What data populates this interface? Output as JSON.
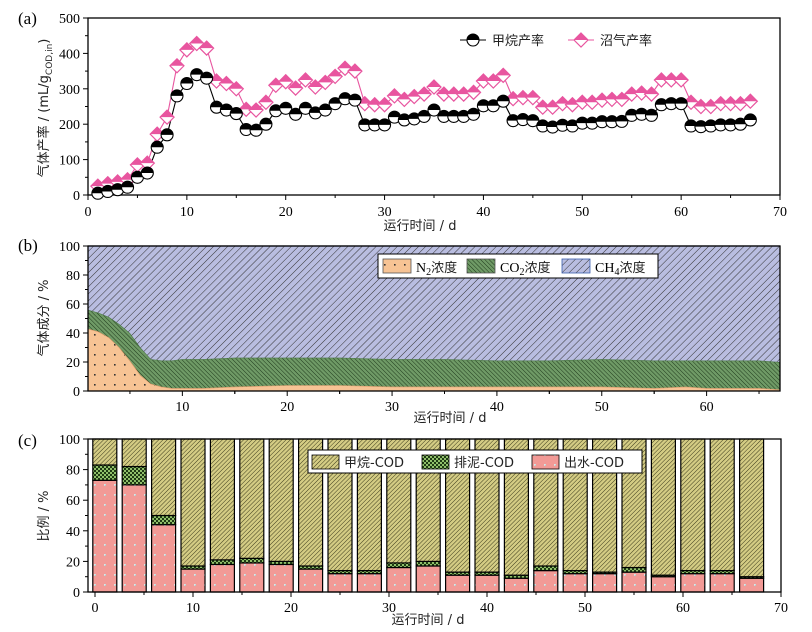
{
  "chart_data": [
    {
      "panel": "a",
      "panel_label": "(a)",
      "type": "line",
      "xlabel": "运行时间 / d",
      "ylabel": "气体产率 / (mL/g",
      "ylabel_sub": "COD,in",
      "ylabel_end": ")",
      "xlim": [
        0,
        70
      ],
      "ylim": [
        0,
        500
      ],
      "xticks": [
        0,
        10,
        20,
        30,
        40,
        50,
        60,
        70
      ],
      "yticks": [
        0,
        100,
        200,
        300,
        400,
        500
      ],
      "legend_position": "top-right",
      "x": [
        1,
        2,
        3,
        4,
        5,
        6,
        7,
        8,
        9,
        10,
        11,
        12,
        13,
        14,
        15,
        16,
        17,
        18,
        19,
        20,
        21,
        22,
        23,
        24,
        25,
        26,
        27,
        28,
        29,
        30,
        31,
        32,
        33,
        34,
        35,
        36,
        37,
        38,
        39,
        40,
        41,
        42,
        43,
        44,
        45,
        46,
        47,
        48,
        49,
        50,
        51,
        52,
        53,
        54,
        55,
        56,
        57,
        58,
        59,
        60,
        61,
        62,
        63,
        64,
        65,
        66,
        67
      ],
      "series": [
        {
          "name": "甲烷产率",
          "color": "#000000",
          "marker": "half-filled-circle",
          "values": [
            5,
            10,
            15,
            22,
            50,
            62,
            135,
            170,
            280,
            315,
            340,
            330,
            248,
            240,
            230,
            185,
            183,
            200,
            238,
            245,
            228,
            245,
            232,
            240,
            258,
            272,
            268,
            198,
            198,
            198,
            220,
            212,
            215,
            222,
            240,
            222,
            222,
            222,
            228,
            252,
            252,
            265,
            210,
            213,
            210,
            195,
            192,
            197,
            195,
            203,
            203,
            207,
            207,
            208,
            225,
            228,
            225,
            255,
            258,
            258,
            195,
            193,
            195,
            198,
            198,
            200,
            212
          ]
        },
        {
          "name": "沼气产率",
          "color": "#e8559f",
          "marker": "half-filled-diamond",
          "values": [
            25,
            32,
            37,
            43,
            85,
            90,
            172,
            220,
            365,
            410,
            428,
            415,
            322,
            315,
            300,
            242,
            240,
            262,
            310,
            320,
            302,
            325,
            305,
            318,
            335,
            358,
            350,
            258,
            255,
            255,
            280,
            270,
            278,
            285,
            305,
            285,
            285,
            285,
            290,
            322,
            322,
            338,
            272,
            275,
            275,
            248,
            248,
            258,
            255,
            262,
            262,
            268,
            270,
            270,
            285,
            288,
            285,
            325,
            325,
            325,
            262,
            250,
            250,
            258,
            258,
            258,
            265
          ]
        }
      ]
    },
    {
      "panel": "b",
      "panel_label": "(b)",
      "type": "area",
      "stacked": true,
      "xlabel": "运行时间 / d",
      "ylabel": "气体成分 / %",
      "xlim": [
        1,
        67
      ],
      "ylim": [
        0,
        100
      ],
      "xticks": [
        10,
        20,
        30,
        40,
        50,
        60
      ],
      "yticks": [
        0,
        20,
        40,
        60,
        80,
        100
      ],
      "legend_position": "top-right",
      "x": [
        1,
        2,
        3,
        4,
        5,
        6,
        7,
        8,
        9,
        10,
        12,
        15,
        20,
        25,
        30,
        35,
        40,
        45,
        50,
        55,
        58,
        60,
        65,
        67
      ],
      "series": [
        {
          "name": "N2浓度",
          "label_main": "N",
          "label_sub": "2",
          "label_tail": "浓度",
          "color": "#f7c394",
          "pattern": "dots",
          "values": [
            43,
            41,
            37,
            30,
            21,
            11,
            5,
            3,
            2,
            2,
            2,
            3,
            4,
            4,
            3,
            3,
            3,
            3,
            3,
            2,
            3,
            2,
            2,
            1
          ]
        },
        {
          "name": "CO2浓度",
          "label_main": "CO",
          "label_sub": "2",
          "label_tail": "浓度",
          "color": "#5f8f5b",
          "pattern": "dense-diagonal",
          "values": [
            13,
            13,
            14,
            16,
            19,
            19,
            17,
            18,
            19,
            20,
            20,
            20,
            19,
            19,
            19,
            19,
            18,
            18,
            19,
            19,
            18,
            19,
            19,
            19
          ]
        },
        {
          "name": "CH4浓度",
          "label_main": "CH",
          "label_sub": "4",
          "label_tail": "浓度",
          "color": "#b9bde0",
          "pattern": "diagonal",
          "values": [
            44,
            46,
            49,
            54,
            60,
            70,
            78,
            79,
            79,
            78,
            78,
            77,
            77,
            77,
            78,
            78,
            79,
            79,
            78,
            79,
            79,
            79,
            79,
            80
          ]
        }
      ]
    },
    {
      "panel": "c",
      "panel_label": "(c)",
      "type": "bar",
      "stacked": true,
      "xlabel": "运行时间 / d",
      "ylabel": "比例 / %",
      "xlim": [
        0,
        70
      ],
      "ylim": [
        0,
        100
      ],
      "xticks": [
        0,
        10,
        20,
        30,
        40,
        50,
        60,
        70
      ],
      "yticks": [
        0,
        20,
        40,
        60,
        80,
        100
      ],
      "legend_position": "top-right",
      "x": [
        1,
        4,
        7,
        10,
        13,
        16,
        19,
        22,
        25,
        28,
        31,
        34,
        37,
        40,
        43,
        46,
        49,
        52,
        55,
        58,
        61,
        64,
        67
      ],
      "series": [
        {
          "name": "出水-COD",
          "color": "#f29a96",
          "pattern": "dots",
          "values": [
            73,
            70,
            44,
            15,
            18,
            19,
            18,
            15,
            12,
            12,
            16,
            17,
            11,
            11,
            9,
            14,
            12,
            12,
            13,
            10,
            12,
            12,
            9
          ]
        },
        {
          "name": "排泥-COD",
          "color": "#4f7a3a",
          "pattern": "checker",
          "values": [
            10,
            12,
            6,
            2,
            3,
            3,
            2,
            2,
            2,
            2,
            3,
            3,
            2,
            2,
            2,
            3,
            2,
            1,
            3,
            1,
            2,
            2,
            1
          ]
        },
        {
          "name": "甲烷-COD",
          "color": "#c9c07a",
          "pattern": "dense-diagonal",
          "values": [
            17,
            18,
            50,
            83,
            79,
            78,
            80,
            83,
            86,
            86,
            81,
            80,
            87,
            87,
            89,
            83,
            86,
            87,
            84,
            89,
            86,
            86,
            90
          ]
        }
      ]
    }
  ]
}
